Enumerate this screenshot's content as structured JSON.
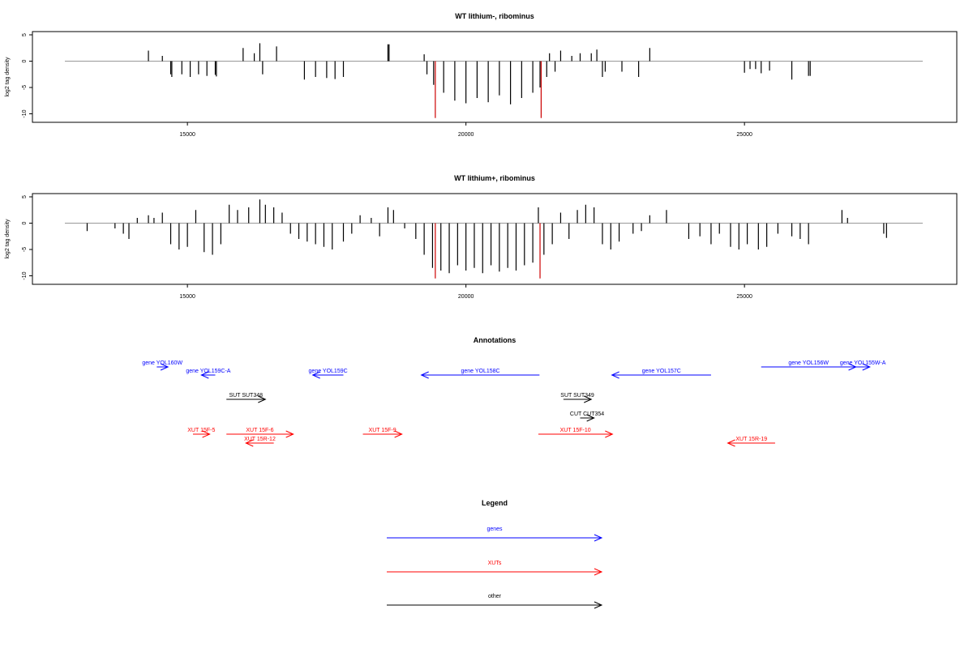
{
  "chart_data": [
    {
      "type": "bar",
      "title": "WT lithium-, ribominus",
      "ylabel": "log2 tag density",
      "xlim": [
        12800,
        28200
      ],
      "ylim": [
        -11,
        5
      ],
      "yticks": [
        5,
        0,
        -5,
        -10
      ],
      "xticks": [
        15000,
        20000,
        25000
      ],
      "grid": false,
      "bar_color": "#000000",
      "marker_color": "#cc0000",
      "markers": [
        {
          "x": 19450,
          "value": -10.8
        },
        {
          "x": 21350,
          "value": -10.8
        }
      ],
      "bars": [
        {
          "x": 14300,
          "value": 2.0
        },
        {
          "x": 14550,
          "value": 1.0
        },
        {
          "x": 14700,
          "value": -2.5
        },
        {
          "x": 14720,
          "value": -3.0
        },
        {
          "x": 14900,
          "value": -2.5
        },
        {
          "x": 15050,
          "value": -3.0
        },
        {
          "x": 15200,
          "value": -2.5
        },
        {
          "x": 15350,
          "value": -2.8
        },
        {
          "x": 15500,
          "value": -2.6
        },
        {
          "x": 15520,
          "value": -2.9
        },
        {
          "x": 16000,
          "value": 2.5
        },
        {
          "x": 16200,
          "value": 1.5
        },
        {
          "x": 16300,
          "value": 3.4
        },
        {
          "x": 16350,
          "value": -2.5
        },
        {
          "x": 16600,
          "value": 2.8
        },
        {
          "x": 17100,
          "value": -3.5
        },
        {
          "x": 17300,
          "value": -3.0
        },
        {
          "x": 17500,
          "value": -3.2
        },
        {
          "x": 17650,
          "value": -3.4
        },
        {
          "x": 17800,
          "value": -3.0
        },
        {
          "x": 18600,
          "value": 3.2
        },
        {
          "x": 18620,
          "value": 3.2
        },
        {
          "x": 19250,
          "value": 1.3
        },
        {
          "x": 19300,
          "value": -2.5
        },
        {
          "x": 19420,
          "value": -4.5
        },
        {
          "x": 19600,
          "value": -6.0
        },
        {
          "x": 19800,
          "value": -7.5
        },
        {
          "x": 20000,
          "value": -8.0
        },
        {
          "x": 20200,
          "value": -7.0
        },
        {
          "x": 20400,
          "value": -7.8
        },
        {
          "x": 20600,
          "value": -6.5
        },
        {
          "x": 20800,
          "value": -8.2
        },
        {
          "x": 21000,
          "value": -7.0
        },
        {
          "x": 21200,
          "value": -6.0
        },
        {
          "x": 21330,
          "value": -5.0
        },
        {
          "x": 21450,
          "value": -3.0
        },
        {
          "x": 21500,
          "value": 1.5
        },
        {
          "x": 21600,
          "value": -2.0
        },
        {
          "x": 21700,
          "value": 2.0
        },
        {
          "x": 21900,
          "value": 1.0
        },
        {
          "x": 22050,
          "value": 1.5
        },
        {
          "x": 22250,
          "value": 1.5
        },
        {
          "x": 22350,
          "value": 2.2
        },
        {
          "x": 22450,
          "value": -3.0
        },
        {
          "x": 22500,
          "value": -2.0
        },
        {
          "x": 22800,
          "value": -2.0
        },
        {
          "x": 23100,
          "value": -3.0
        },
        {
          "x": 23300,
          "value": 2.5
        },
        {
          "x": 25000,
          "value": -2.2
        },
        {
          "x": 25100,
          "value": -1.5
        },
        {
          "x": 25200,
          "value": -1.5
        },
        {
          "x": 25300,
          "value": -2.3
        },
        {
          "x": 25450,
          "value": -1.8
        },
        {
          "x": 25850,
          "value": -3.5
        },
        {
          "x": 26150,
          "value": -2.8
        },
        {
          "x": 26180,
          "value": -2.8
        }
      ]
    },
    {
      "type": "bar",
      "title": "WT lithium+, ribominus",
      "ylabel": "log2 tag density",
      "xlim": [
        12800,
        28200
      ],
      "ylim": [
        -11,
        5
      ],
      "yticks": [
        5,
        0,
        -5,
        -10
      ],
      "xticks": [
        15000,
        20000,
        25000
      ],
      "grid": false,
      "bar_color": "#000000",
      "marker_color": "#cc0000",
      "markers": [
        {
          "x": 19450,
          "value": -10.5
        },
        {
          "x": 21330,
          "value": -10.5
        }
      ],
      "bars": [
        {
          "x": 13200,
          "value": -1.5
        },
        {
          "x": 13700,
          "value": -1.0
        },
        {
          "x": 13850,
          "value": -2.0
        },
        {
          "x": 13950,
          "value": -3.0
        },
        {
          "x": 14100,
          "value": 1.0
        },
        {
          "x": 14300,
          "value": 1.5
        },
        {
          "x": 14400,
          "value": 1.0
        },
        {
          "x": 14550,
          "value": 2.0
        },
        {
          "x": 14700,
          "value": -4.0
        },
        {
          "x": 14850,
          "value": -5.0
        },
        {
          "x": 15000,
          "value": -4.5
        },
        {
          "x": 15150,
          "value": 2.5
        },
        {
          "x": 15300,
          "value": -5.5
        },
        {
          "x": 15450,
          "value": -6.0
        },
        {
          "x": 15600,
          "value": -4.0
        },
        {
          "x": 15750,
          "value": 3.5
        },
        {
          "x": 15900,
          "value": 2.5
        },
        {
          "x": 16100,
          "value": 3.0
        },
        {
          "x": 16300,
          "value": 4.5
        },
        {
          "x": 16400,
          "value": 3.5
        },
        {
          "x": 16550,
          "value": 3.0
        },
        {
          "x": 16700,
          "value": 2.0
        },
        {
          "x": 16850,
          "value": -2.0
        },
        {
          "x": 17000,
          "value": -3.0
        },
        {
          "x": 17150,
          "value": -3.5
        },
        {
          "x": 17300,
          "value": -4.0
        },
        {
          "x": 17450,
          "value": -4.5
        },
        {
          "x": 17600,
          "value": -5.0
        },
        {
          "x": 17800,
          "value": -3.5
        },
        {
          "x": 17950,
          "value": -2.0
        },
        {
          "x": 18100,
          "value": 1.5
        },
        {
          "x": 18300,
          "value": 1.0
        },
        {
          "x": 18450,
          "value": -2.5
        },
        {
          "x": 18600,
          "value": 3.0
        },
        {
          "x": 18700,
          "value": 2.5
        },
        {
          "x": 18900,
          "value": -1.0
        },
        {
          "x": 19100,
          "value": -3.0
        },
        {
          "x": 19250,
          "value": -6.0
        },
        {
          "x": 19400,
          "value": -8.5
        },
        {
          "x": 19550,
          "value": -9.0
        },
        {
          "x": 19700,
          "value": -9.5
        },
        {
          "x": 19850,
          "value": -8.0
        },
        {
          "x": 20000,
          "value": -9.0
        },
        {
          "x": 20150,
          "value": -8.5
        },
        {
          "x": 20300,
          "value": -9.5
        },
        {
          "x": 20450,
          "value": -8.0
        },
        {
          "x": 20600,
          "value": -9.2
        },
        {
          "x": 20750,
          "value": -8.5
        },
        {
          "x": 20900,
          "value": -9.0
        },
        {
          "x": 21050,
          "value": -8.0
        },
        {
          "x": 21200,
          "value": -7.5
        },
        {
          "x": 21300,
          "value": 3.0
        },
        {
          "x": 21400,
          "value": -6.0
        },
        {
          "x": 21550,
          "value": -4.0
        },
        {
          "x": 21700,
          "value": 2.0
        },
        {
          "x": 21850,
          "value": -3.0
        },
        {
          "x": 22000,
          "value": 2.5
        },
        {
          "x": 22150,
          "value": 3.5
        },
        {
          "x": 22300,
          "value": 3.0
        },
        {
          "x": 22450,
          "value": -4.0
        },
        {
          "x": 22600,
          "value": -5.0
        },
        {
          "x": 22750,
          "value": -3.5
        },
        {
          "x": 23000,
          "value": -2.0
        },
        {
          "x": 23150,
          "value": -1.5
        },
        {
          "x": 23300,
          "value": 1.5
        },
        {
          "x": 23600,
          "value": 2.5
        },
        {
          "x": 24000,
          "value": -3.0
        },
        {
          "x": 24200,
          "value": -2.5
        },
        {
          "x": 24400,
          "value": -4.0
        },
        {
          "x": 24550,
          "value": -2.0
        },
        {
          "x": 24750,
          "value": -4.5
        },
        {
          "x": 24900,
          "value": -5.0
        },
        {
          "x": 25050,
          "value": -4.0
        },
        {
          "x": 25250,
          "value": -5.0
        },
        {
          "x": 25400,
          "value": -4.5
        },
        {
          "x": 25600,
          "value": -2.0
        },
        {
          "x": 25850,
          "value": -2.5
        },
        {
          "x": 26000,
          "value": -3.0
        },
        {
          "x": 26150,
          "value": -4.0
        },
        {
          "x": 26750,
          "value": 2.5
        },
        {
          "x": 26850,
          "value": 1.0
        },
        {
          "x": 27500,
          "value": -2.0
        },
        {
          "x": 27550,
          "value": -2.8
        }
      ]
    }
  ],
  "annotations": {
    "title": "Annotations",
    "features": [
      {
        "label": "gene YOL160W",
        "start": 14450,
        "end": 14650,
        "row": 0,
        "color": "#0000ff"
      },
      {
        "label": "gene YOL159C-A",
        "start": 15500,
        "end": 15250,
        "row": 1,
        "color": "#0000ff"
      },
      {
        "label": "gene YOL159C",
        "start": 17800,
        "end": 17250,
        "row": 1,
        "color": "#0000ff"
      },
      {
        "label": "gene YOL158C",
        "start": 21320,
        "end": 19200,
        "row": 1,
        "color": "#0000ff"
      },
      {
        "label": "gene YOL157C",
        "start": 24400,
        "end": 22620,
        "row": 1,
        "color": "#0000ff"
      },
      {
        "label": "gene YOL156W",
        "start": 25300,
        "end": 27000,
        "row": 0,
        "color": "#0000ff"
      },
      {
        "label": "gene YOL155W-A",
        "start": 27000,
        "end": 27250,
        "row": 0,
        "color": "#0000ff"
      },
      {
        "label": "SUT SUT348",
        "start": 15700,
        "end": 16400,
        "row": 3,
        "color": "#000000"
      },
      {
        "label": "SUT SUT349",
        "start": 21750,
        "end": 22250,
        "row": 3,
        "color": "#000000"
      },
      {
        "label": "CUT CUT354",
        "start": 22050,
        "end": 22300,
        "row": 4,
        "color": "#000000"
      },
      {
        "label": "XUT 15F-5",
        "start": 15100,
        "end": 15400,
        "row": 5,
        "color": "#ff0000"
      },
      {
        "label": "XUT 15F-6",
        "start": 15700,
        "end": 16900,
        "row": 5,
        "color": "#ff0000"
      },
      {
        "label": "XUT 15R-12",
        "start": 16550,
        "end": 16050,
        "row": 6,
        "color": "#ff0000"
      },
      {
        "label": "XUT 15F-9",
        "start": 18150,
        "end": 18850,
        "row": 5,
        "color": "#ff0000"
      },
      {
        "label": "XUT 15F-10",
        "start": 21300,
        "end": 22630,
        "row": 5,
        "color": "#ff0000"
      },
      {
        "label": "XUT 15R-19",
        "start": 25550,
        "end": 24700,
        "row": 6,
        "color": "#ff0000"
      }
    ]
  },
  "legend": {
    "title": "Legend",
    "items": [
      {
        "label": "genes",
        "color": "#0000ff"
      },
      {
        "label": "XUTs",
        "color": "#ff0000"
      },
      {
        "label": "other",
        "color": "#000000"
      }
    ]
  }
}
